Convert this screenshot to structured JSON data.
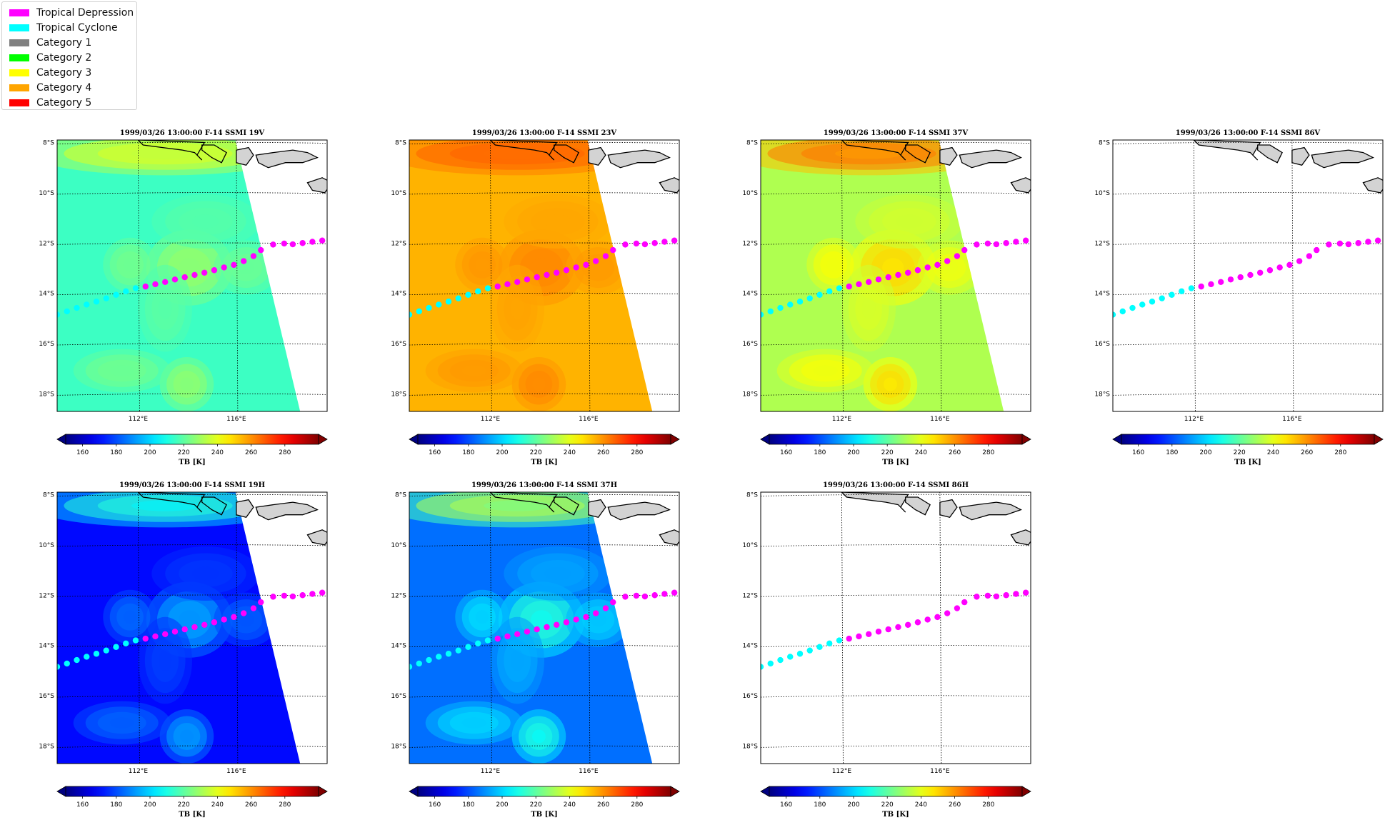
{
  "legend": {
    "items": [
      {
        "label": "Tropical Depression",
        "color": "#ff00ff"
      },
      {
        "label": "Tropical Cyclone",
        "color": "#00ffff"
      },
      {
        "label": "Category 1",
        "color": "#808080"
      },
      {
        "label": "Category 2",
        "color": "#00ff00"
      },
      {
        "label": "Category 3",
        "color": "#ffff00"
      },
      {
        "label": "Category 4",
        "color": "#ffa500"
      },
      {
        "label": "Category 5",
        "color": "#ff0000"
      }
    ]
  },
  "chart_data": [
    {
      "type": "heatmap",
      "title": "1999/03/26 13:00:00  F-14 SSMI 19V",
      "channel": "19V",
      "base_tb": 215,
      "has_data": true,
      "colorbar_label": "TB [K]",
      "colorbar_ticks": [
        160,
        180,
        200,
        220,
        240,
        260,
        280
      ],
      "clim": [
        150,
        300
      ],
      "lat_ticks": [
        "8°S",
        "10°S",
        "12°S",
        "14°S",
        "16°S",
        "18°S"
      ],
      "lon_ticks": [
        "112°E",
        "116°E"
      ]
    },
    {
      "type": "heatmap",
      "title": "1999/03/26 13:00:00  F-14 SSMI 23V",
      "channel": "23V",
      "base_tb": 255,
      "has_data": true,
      "colorbar_label": "TB [K]",
      "colorbar_ticks": [
        160,
        180,
        200,
        220,
        240,
        260,
        280
      ],
      "clim": [
        150,
        300
      ],
      "lat_ticks": [
        "8°S",
        "10°S",
        "12°S",
        "14°S",
        "16°S",
        "18°S"
      ],
      "lon_ticks": [
        "112°E",
        "116°E"
      ]
    },
    {
      "type": "heatmap",
      "title": "1999/03/26 13:00:00  F-14 SSMI 37V",
      "channel": "37V",
      "base_tb": 232,
      "has_data": true,
      "colorbar_label": "TB [K]",
      "colorbar_ticks": [
        160,
        180,
        200,
        220,
        240,
        260,
        280
      ],
      "clim": [
        150,
        300
      ],
      "lat_ticks": [
        "8°S",
        "10°S",
        "12°S",
        "14°S",
        "16°S",
        "18°S"
      ],
      "lon_ticks": [
        "112°E",
        "116°E"
      ]
    },
    {
      "type": "heatmap",
      "title": "1999/03/26 13:00:00  F-14 SSMI 86V",
      "channel": "86V",
      "base_tb": null,
      "has_data": false,
      "colorbar_label": "TB [K]",
      "colorbar_ticks": [
        160,
        180,
        200,
        220,
        240,
        260,
        280
      ],
      "clim": [
        150,
        300
      ],
      "lat_ticks": [
        "8°S",
        "10°S",
        "12°S",
        "14°S",
        "16°S",
        "18°S"
      ],
      "lon_ticks": [
        "112°E",
        "116°E"
      ]
    },
    {
      "type": "heatmap",
      "title": "1999/03/26 13:00:00  F-14 SSMI 19H",
      "channel": "19H",
      "base_tb": 170,
      "has_data": true,
      "colorbar_label": "TB [K]",
      "colorbar_ticks": [
        160,
        180,
        200,
        220,
        240,
        260,
        280
      ],
      "clim": [
        150,
        300
      ],
      "lat_ticks": [
        "8°S",
        "10°S",
        "12°S",
        "14°S",
        "16°S",
        "18°S"
      ],
      "lon_ticks": [
        "112°E",
        "116°E"
      ]
    },
    {
      "type": "heatmap",
      "title": "1999/03/26 13:00:00  F-14 SSMI 37H",
      "channel": "37H",
      "base_tb": 185,
      "has_data": true,
      "colorbar_label": "TB [K]",
      "colorbar_ticks": [
        160,
        180,
        200,
        220,
        240,
        260,
        280
      ],
      "clim": [
        150,
        300
      ],
      "lat_ticks": [
        "8°S",
        "10°S",
        "12°S",
        "14°S",
        "16°S",
        "18°S"
      ],
      "lon_ticks": [
        "112°E",
        "116°E"
      ]
    },
    {
      "type": "heatmap",
      "title": "1999/03/26 13:00:00  F-14 SSMI 86H",
      "channel": "86H",
      "base_tb": null,
      "has_data": false,
      "colorbar_label": "TB [K]",
      "colorbar_ticks": [
        160,
        180,
        200,
        220,
        240,
        260,
        280
      ],
      "clim": [
        150,
        300
      ],
      "lat_ticks": [
        "8°S",
        "10°S",
        "12°S",
        "14°S",
        "16°S",
        "18°S"
      ],
      "lon_ticks": [
        "112°E",
        "116°E"
      ]
    }
  ],
  "track": {
    "map_extent": {
      "lon": [
        108.7,
        119.7
      ],
      "lat": [
        -18.7,
        -7.9
      ]
    },
    "points": [
      {
        "lon": 108.7,
        "lat": -14.85,
        "stage": "Tropical Cyclone"
      },
      {
        "lon": 109.1,
        "lat": -14.72,
        "stage": "Tropical Cyclone"
      },
      {
        "lon": 109.5,
        "lat": -14.58,
        "stage": "Tropical Cyclone"
      },
      {
        "lon": 109.9,
        "lat": -14.45,
        "stage": "Tropical Cyclone"
      },
      {
        "lon": 110.3,
        "lat": -14.33,
        "stage": "Tropical Cyclone"
      },
      {
        "lon": 110.7,
        "lat": -14.2,
        "stage": "Tropical Cyclone"
      },
      {
        "lon": 111.1,
        "lat": -14.06,
        "stage": "Tropical Cyclone"
      },
      {
        "lon": 111.5,
        "lat": -13.92,
        "stage": "Tropical Cyclone"
      },
      {
        "lon": 111.9,
        "lat": -13.8,
        "stage": "Tropical Cyclone"
      },
      {
        "lon": 112.3,
        "lat": -13.73,
        "stage": "Tropical Depression"
      },
      {
        "lon": 112.7,
        "lat": -13.64,
        "stage": "Tropical Depression"
      },
      {
        "lon": 113.1,
        "lat": -13.55,
        "stage": "Tropical Depression"
      },
      {
        "lon": 113.5,
        "lat": -13.45,
        "stage": "Tropical Depression"
      },
      {
        "lon": 113.9,
        "lat": -13.36,
        "stage": "Tropical Depression"
      },
      {
        "lon": 114.3,
        "lat": -13.27,
        "stage": "Tropical Depression"
      },
      {
        "lon": 114.7,
        "lat": -13.18,
        "stage": "Tropical Depression"
      },
      {
        "lon": 115.1,
        "lat": -13.08,
        "stage": "Tropical Depression"
      },
      {
        "lon": 115.5,
        "lat": -12.97,
        "stage": "Tropical Depression"
      },
      {
        "lon": 115.9,
        "lat": -12.87,
        "stage": "Tropical Depression"
      },
      {
        "lon": 116.3,
        "lat": -12.72,
        "stage": "Tropical Depression"
      },
      {
        "lon": 116.7,
        "lat": -12.52,
        "stage": "Tropical Depression"
      },
      {
        "lon": 117.0,
        "lat": -12.28,
        "stage": "Tropical Depression"
      },
      {
        "lon": 117.5,
        "lat": -12.06,
        "stage": "Tropical Depression"
      },
      {
        "lon": 117.95,
        "lat": -12.02,
        "stage": "Tropical Depression"
      },
      {
        "lon": 118.3,
        "lat": -12.05,
        "stage": "Tropical Depression"
      },
      {
        "lon": 118.7,
        "lat": -12.0,
        "stage": "Tropical Depression"
      },
      {
        "lon": 119.1,
        "lat": -11.95,
        "stage": "Tropical Depression"
      },
      {
        "lon": 119.5,
        "lat": -11.9,
        "stage": "Tropical Depression"
      }
    ]
  }
}
